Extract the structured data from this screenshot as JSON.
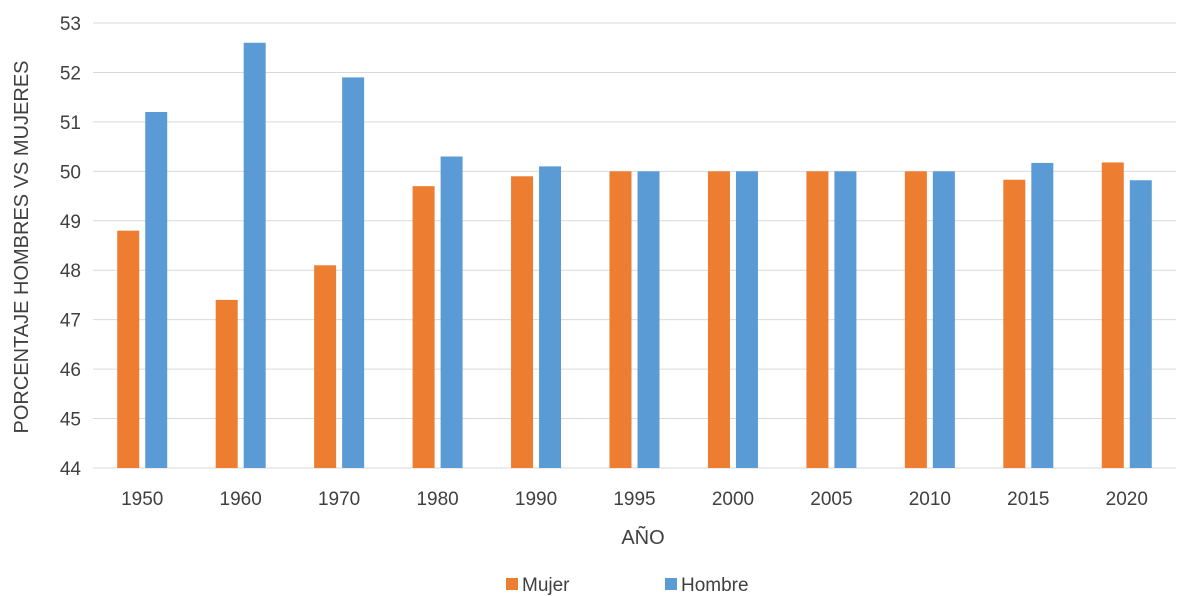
{
  "chart_data": {
    "type": "bar",
    "title": "",
    "xlabel": "AÑO",
    "ylabel": "PORCENTAJE HOMBRES VS MUJERES",
    "ylim": [
      44,
      53
    ],
    "yticks": [
      44,
      45,
      46,
      47,
      48,
      49,
      50,
      51,
      52,
      53
    ],
    "grid": true,
    "legend_position": "bottom",
    "categories": [
      "1950",
      "1960",
      "1970",
      "1980",
      "1990",
      "1995",
      "2000",
      "2005",
      "2010",
      "2015",
      "2020"
    ],
    "series": [
      {
        "name": "Mujer",
        "color": "#ED7D31",
        "values": [
          48.8,
          47.4,
          48.1,
          49.7,
          49.9,
          50.0,
          50.0,
          50.0,
          50.0,
          49.83,
          50.18
        ]
      },
      {
        "name": "Hombre",
        "color": "#5B9BD5",
        "values": [
          51.2,
          52.6,
          51.9,
          50.3,
          50.1,
          50.0,
          50.0,
          50.0,
          50.0,
          50.17,
          49.82
        ]
      }
    ]
  }
}
